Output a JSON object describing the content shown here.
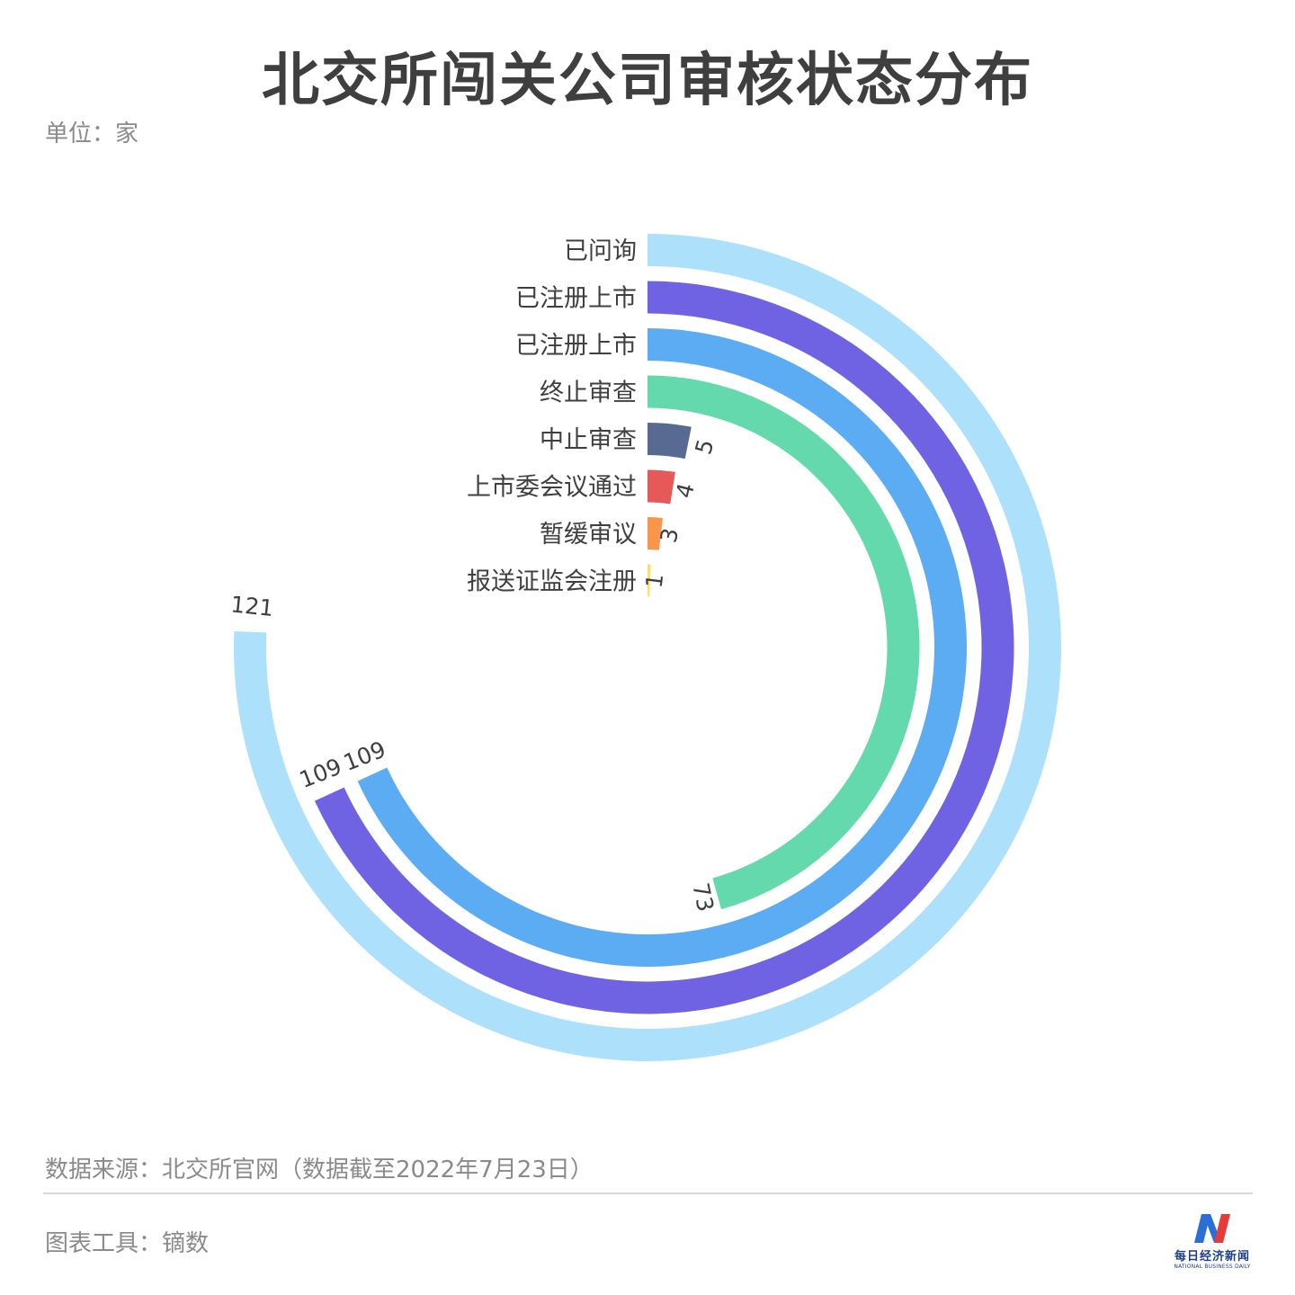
{
  "title": "北交所闯关公司审核状态分布",
  "unit": "单位：家",
  "source": "数据来源：北交所官网（数据截至2022年7月23日）",
  "tool": "图表工具：镝数",
  "logo": {
    "cn": "每日经济新闻",
    "en": "NATIONAL BUSINESS DAILY"
  },
  "chart_data": {
    "type": "radial-bar",
    "unit": "家",
    "max": 160,
    "categories": [
      "已问询",
      "已注册上市",
      "已注册上市",
      "终止审查",
      "中止审查",
      "上市委会议通过",
      "暂缓审议",
      "报送证监会注册"
    ],
    "values": [
      121,
      109,
      109,
      73,
      5,
      4,
      3,
      1
    ],
    "colors": [
      "#ace0fb",
      "#7063e3",
      "#5bacf2",
      "#63d9ad",
      "#586a92",
      "#e55a59",
      "#f9964c",
      "#fde065"
    ]
  }
}
